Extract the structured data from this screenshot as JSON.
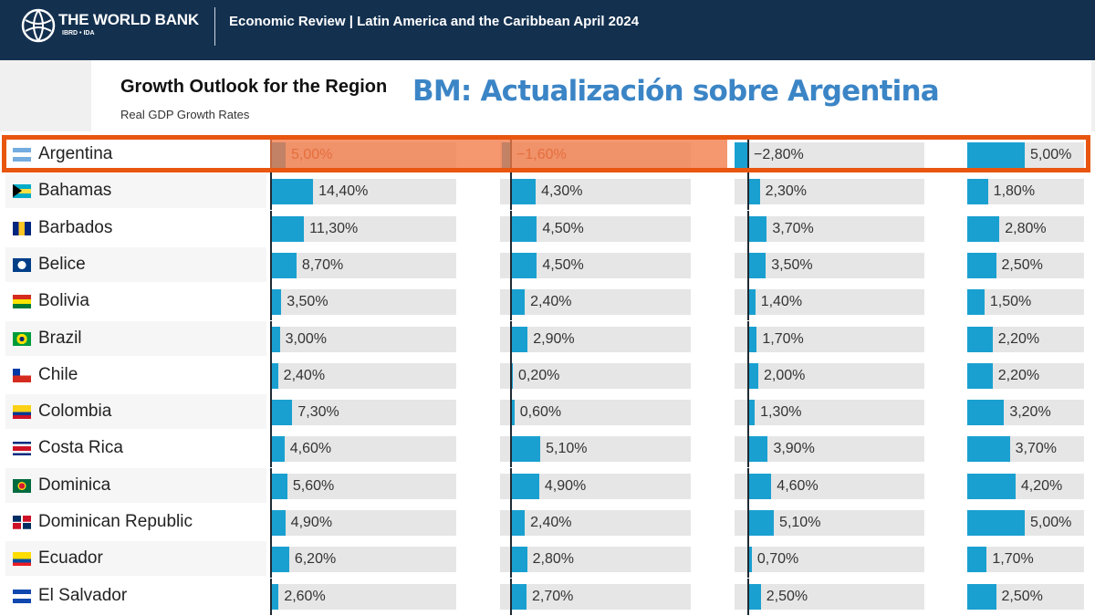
{
  "header": {
    "org": "THE WORLD BANK",
    "org_sub": "IBRD • IDA",
    "review": "Economic Review | Latin America and the Caribbean April 2024"
  },
  "chart": {
    "title": "Growth Outlook for the Region",
    "subtitle": "Real GDP Growth Rates"
  },
  "headline": "BM: Actualización sobre Argentina",
  "colors": {
    "bar": "#1aa0d0",
    "highlight": "#e8560f",
    "headline": "#3b85c6",
    "header_bg": "#13304f"
  },
  "chart_data": {
    "type": "table",
    "highlighted_row": "Argentina",
    "rows": [
      {
        "country": "Argentina",
        "flag": "argentina-flag-icon",
        "values": [
          5.0,
          -1.6,
          -2.8,
          5.0
        ],
        "labels": [
          "5,00%",
          "−1,60%",
          "−2,80%",
          "5,00%"
        ]
      },
      {
        "country": "Bahamas",
        "flag": "bahamas-flag-icon",
        "values": [
          14.4,
          4.3,
          2.3,
          1.8
        ],
        "labels": [
          "14,40%",
          "4,30%",
          "2,30%",
          "1,80%"
        ]
      },
      {
        "country": "Barbados",
        "flag": "barbados-flag-icon",
        "values": [
          11.3,
          4.5,
          3.7,
          2.8
        ],
        "labels": [
          "11,30%",
          "4,50%",
          "3,70%",
          "2,80%"
        ]
      },
      {
        "country": "Belice",
        "flag": "belize-flag-icon",
        "values": [
          8.7,
          4.5,
          3.5,
          2.5
        ],
        "labels": [
          "8,70%",
          "4,50%",
          "3,50%",
          "2,50%"
        ]
      },
      {
        "country": "Bolivia",
        "flag": "bolivia-flag-icon",
        "values": [
          3.5,
          2.4,
          1.4,
          1.5
        ],
        "labels": [
          "3,50%",
          "2,40%",
          "1,40%",
          "1,50%"
        ]
      },
      {
        "country": "Brazil",
        "flag": "brazil-flag-icon",
        "values": [
          3.0,
          2.9,
          1.7,
          2.2
        ],
        "labels": [
          "3,00%",
          "2,90%",
          "1,70%",
          "2,20%"
        ]
      },
      {
        "country": "Chile",
        "flag": "chile-flag-icon",
        "values": [
          2.4,
          0.2,
          2.0,
          2.2
        ],
        "labels": [
          "2,40%",
          "0,20%",
          "2,00%",
          "2,20%"
        ]
      },
      {
        "country": "Colombia",
        "flag": "colombia-flag-icon",
        "values": [
          7.3,
          0.6,
          1.3,
          3.2
        ],
        "labels": [
          "7,30%",
          "0,60%",
          "1,30%",
          "3,20%"
        ]
      },
      {
        "country": "Costa Rica",
        "flag": "costa-rica-flag-icon",
        "values": [
          4.6,
          5.1,
          3.9,
          3.7
        ],
        "labels": [
          "4,60%",
          "5,10%",
          "3,90%",
          "3,70%"
        ]
      },
      {
        "country": "Dominica",
        "flag": "dominica-flag-icon",
        "values": [
          5.6,
          4.9,
          4.6,
          4.2
        ],
        "labels": [
          "5,60%",
          "4,90%",
          "4,60%",
          "4,20%"
        ]
      },
      {
        "country": "Dominican Republic",
        "flag": "dominican-republic-flag-icon",
        "values": [
          4.9,
          2.4,
          5.1,
          5.0
        ],
        "labels": [
          "4,90%",
          "2,40%",
          "5,10%",
          "5,00%"
        ]
      },
      {
        "country": "Ecuador",
        "flag": "ecuador-flag-icon",
        "values": [
          6.2,
          2.8,
          0.7,
          1.7
        ],
        "labels": [
          "6,20%",
          "2,80%",
          "0,70%",
          "1,70%"
        ]
      },
      {
        "country": "El Salvador",
        "flag": "el-salvador-flag-icon",
        "values": [
          2.6,
          2.7,
          2.5,
          2.5
        ],
        "labels": [
          "2,60%",
          "2,70%",
          "2,50%",
          "2,50%"
        ]
      }
    ]
  }
}
